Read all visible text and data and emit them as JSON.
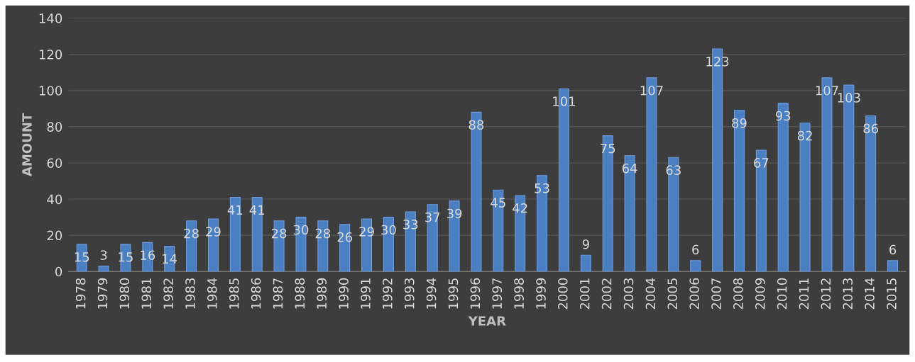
{
  "chart_data": {
    "type": "bar",
    "xlabel": "YEAR",
    "ylabel": "AMOUNT",
    "categories": [
      "1978",
      "1979",
      "1980",
      "1981",
      "1982",
      "1983",
      "1984",
      "1985",
      "1986",
      "1987",
      "1988",
      "1989",
      "1990",
      "1991",
      "1992",
      "1993",
      "1994",
      "1995",
      "1996",
      "1997",
      "1998",
      "1999",
      "2000",
      "2001",
      "2002",
      "2003",
      "2004",
      "2005",
      "2006",
      "2007",
      "2008",
      "2009",
      "2010",
      "2011",
      "2012",
      "2013",
      "2014",
      "2015"
    ],
    "values": [
      15,
      3,
      15,
      16,
      14,
      28,
      29,
      41,
      41,
      28,
      30,
      28,
      26,
      29,
      30,
      33,
      37,
      39,
      88,
      45,
      42,
      53,
      101,
      9,
      75,
      64,
      107,
      63,
      6,
      123,
      89,
      67,
      93,
      82,
      107,
      103,
      86,
      6
    ],
    "color": "#4a7fc1",
    "ylim": [
      0,
      140
    ],
    "yticks": [
      0,
      20,
      40,
      60,
      80,
      100,
      120,
      140
    ],
    "grid": "y",
    "data_labels": true,
    "legend": false
  }
}
